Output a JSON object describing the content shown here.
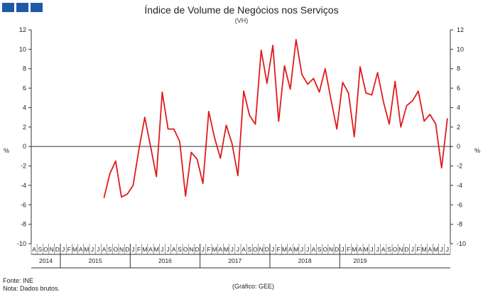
{
  "header": {
    "logo_squares": [
      "",
      "",
      ""
    ],
    "title": "Índice de Volume de Negócios nos Serviços",
    "subtitle": "(VH)"
  },
  "footer": {
    "source": "Fonte: INE",
    "note": "Nota: Dados brutos.",
    "credit": "(Gráfico: GEE)"
  },
  "chart_data": {
    "type": "line",
    "title": "Índice de Volume de Negócios nos Serviços",
    "subtitle": "(VH)",
    "ylabel_left": "%",
    "ylabel_right": "%",
    "ylim": [
      -10,
      12
    ],
    "yticks": [
      -10,
      -8,
      -6,
      -4,
      -2,
      0,
      2,
      4,
      6,
      8,
      10,
      12
    ],
    "grid": false,
    "line_color": "#e01b1b",
    "month_labels": [
      "A",
      "S",
      "O",
      "N",
      "D",
      "J",
      "F",
      "M",
      "A",
      "M",
      "J",
      "J",
      "A",
      "S",
      "O",
      "N",
      "D",
      "J",
      "F",
      "M",
      "A",
      "M",
      "J",
      "J",
      "A",
      "S",
      "O",
      "N",
      "D",
      "J",
      "F",
      "M",
      "A",
      "M",
      "J",
      "J",
      "A",
      "S",
      "O",
      "N",
      "D",
      "J",
      "F",
      "M",
      "A",
      "M",
      "J",
      "J",
      "A",
      "S",
      "O",
      "N",
      "D",
      "J",
      "F",
      "M",
      "A",
      "M",
      "J",
      "J",
      "A",
      "S",
      "O",
      "N",
      "D",
      "J",
      "F",
      "M",
      "A",
      "M",
      "J",
      "J"
    ],
    "years": [
      {
        "label": "2014",
        "months": 5
      },
      {
        "label": "2015",
        "months": 12
      },
      {
        "label": "2016",
        "months": 12
      },
      {
        "label": "2017",
        "months": 12
      },
      {
        "label": "2018",
        "months": 12
      },
      {
        "label": "2019",
        "months": 7
      }
    ],
    "x": [
      "2014-08",
      "2014-09",
      "2014-10",
      "2014-11",
      "2014-12",
      "2015-01",
      "2015-02",
      "2015-03",
      "2015-04",
      "2015-05",
      "2015-06",
      "2015-07",
      "2015-08",
      "2015-09",
      "2015-10",
      "2015-11",
      "2015-12",
      "2016-01",
      "2016-02",
      "2016-03",
      "2016-04",
      "2016-05",
      "2016-06",
      "2016-07",
      "2016-08",
      "2016-09",
      "2016-10",
      "2016-11",
      "2016-12",
      "2017-01",
      "2017-02",
      "2017-03",
      "2017-04",
      "2017-05",
      "2017-06",
      "2017-07",
      "2017-08",
      "2017-09",
      "2017-10",
      "2017-11",
      "2017-12",
      "2018-01",
      "2018-02",
      "2018-03",
      "2018-04",
      "2018-05",
      "2018-06",
      "2018-07",
      "2018-08",
      "2018-09",
      "2018-10",
      "2018-11",
      "2018-12",
      "2019-01",
      "2019-02",
      "2019-03",
      "2019-04",
      "2019-05",
      "2019-06",
      "2019-07"
    ],
    "series": [
      {
        "values": [
          -5.3,
          -2.8,
          -1.5,
          -5.2,
          -4.9,
          -4.0,
          -0.3,
          3.0,
          0.0,
          -3.1,
          5.6,
          1.8,
          1.8,
          0.5,
          -5.1,
          -0.6,
          -1.3,
          -3.8,
          3.6,
          0.9,
          -1.2,
          2.2,
          0.3,
          -3.0,
          5.7,
          3.2,
          2.3,
          9.9,
          6.5,
          10.4,
          2.6,
          8.3,
          5.9,
          11.0,
          7.4,
          6.4,
          7.0,
          5.6,
          8.0,
          4.8,
          1.8,
          6.6,
          5.5,
          1.0,
          8.2,
          5.5,
          5.3,
          7.6,
          4.6,
          2.3,
          6.7,
          2.0,
          4.2,
          4.7,
          5.7,
          2.6,
          3.3,
          2.3,
          -2.2,
          2.9
        ]
      }
    ]
  }
}
